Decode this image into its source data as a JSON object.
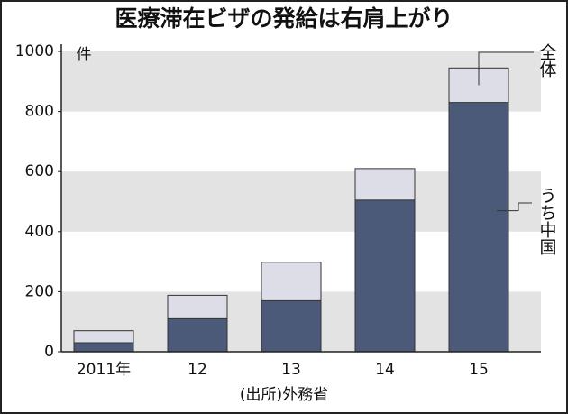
{
  "chart_data": {
    "type": "bar",
    "title": "医療滞在ビザの発給は右肩上がり",
    "unit": "件",
    "source": "(出所)外務省",
    "categories": [
      "2011年",
      "12",
      "13",
      "14",
      "15"
    ],
    "series": [
      {
        "name": "全体",
        "color": "#dcdde6",
        "values": [
          70,
          188,
          298,
          610,
          945
        ]
      },
      {
        "name": "うち中国",
        "color": "#4a5a78",
        "values": [
          30,
          110,
          170,
          505,
          830
        ]
      }
    ],
    "overlap": true,
    "ylim": [
      0,
      1000
    ],
    "yticks": [
      0,
      200,
      400,
      600,
      800,
      1000
    ],
    "grid": true
  }
}
